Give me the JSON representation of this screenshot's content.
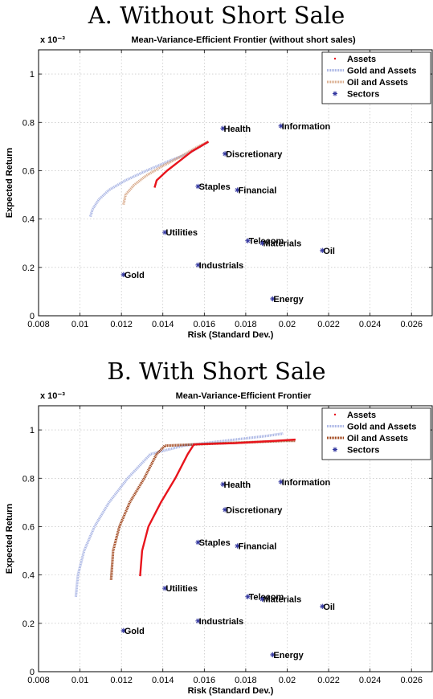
{
  "headings": [
    "A. Without Short Sale",
    "B. With Short Sale"
  ],
  "chart_data": [
    {
      "type": "scatter",
      "title": "Mean-Variance-Efficient Frontier (without short sales)",
      "xlabel": "Risk (Standard Dev.)",
      "ylabel": "Expected Return",
      "y_exponent_label": "x 10⁻³",
      "xlim": [
        0.008,
        0.027
      ],
      "ylim": [
        0,
        1.1
      ],
      "x_ticks": [
        0.008,
        0.01,
        0.012,
        0.014,
        0.016,
        0.018,
        0.02,
        0.022,
        0.024,
        0.026
      ],
      "y_ticks": [
        0,
        0.2,
        0.4,
        0.6,
        0.8,
        1
      ],
      "grid": true,
      "legend_position": "top-right",
      "legend": [
        "Assets",
        "Gold and Assets",
        "Oil and Assets",
        "Sectors"
      ],
      "colors": {
        "assets": "#e8141c",
        "gold": "#a8b4e4",
        "oil": "#d8a888",
        "sectors": "#3438a0"
      },
      "frontiers": [
        {
          "name": "Assets",
          "points": [
            [
              0.0136,
              0.53
            ],
            [
              0.0137,
              0.56
            ],
            [
              0.0142,
              0.6
            ],
            [
              0.0148,
              0.64
            ],
            [
              0.0154,
              0.68
            ],
            [
              0.0158,
              0.7
            ],
            [
              0.0162,
              0.72
            ]
          ]
        },
        {
          "name": "Gold and Assets",
          "points": [
            [
              0.0105,
              0.41
            ],
            [
              0.0106,
              0.44
            ],
            [
              0.0109,
              0.48
            ],
            [
              0.0114,
              0.52
            ],
            [
              0.0122,
              0.56
            ],
            [
              0.0132,
              0.6
            ],
            [
              0.0143,
              0.64
            ],
            [
              0.0152,
              0.67
            ],
            [
              0.0158,
              0.7
            ],
            [
              0.0162,
              0.72
            ]
          ]
        },
        {
          "name": "Oil and Assets",
          "points": [
            [
              0.0121,
              0.46
            ],
            [
              0.0122,
              0.5
            ],
            [
              0.0126,
              0.54
            ],
            [
              0.0132,
              0.58
            ],
            [
              0.014,
              0.62
            ],
            [
              0.0149,
              0.66
            ],
            [
              0.0157,
              0.7
            ],
            [
              0.0162,
              0.72
            ]
          ]
        }
      ],
      "sectors": [
        {
          "name": "Health",
          "x": 0.0169,
          "y": 0.775
        },
        {
          "name": "Information",
          "x": 0.0197,
          "y": 0.785
        },
        {
          "name": "Discretionary",
          "x": 0.017,
          "y": 0.67
        },
        {
          "name": "Staples",
          "x": 0.0157,
          "y": 0.535
        },
        {
          "name": "Financial",
          "x": 0.0176,
          "y": 0.52
        },
        {
          "name": "Utilities",
          "x": 0.0141,
          "y": 0.345
        },
        {
          "name": "Telecom",
          "x": 0.0181,
          "y": 0.31
        },
        {
          "name": "Materials",
          "x": 0.0188,
          "y": 0.3
        },
        {
          "name": "Oil",
          "x": 0.0217,
          "y": 0.27
        },
        {
          "name": "Industrials",
          "x": 0.0157,
          "y": 0.21
        },
        {
          "name": "Gold",
          "x": 0.0121,
          "y": 0.17
        },
        {
          "name": "Energy",
          "x": 0.0193,
          "y": 0.07
        }
      ]
    },
    {
      "type": "scatter",
      "title": "Mean-Variance-Efficient Frontier",
      "xlabel": "Risk (Standard Dev.)",
      "ylabel": "Expected Return",
      "y_exponent_label": "x 10⁻³",
      "xlim": [
        0.008,
        0.027
      ],
      "ylim": [
        0,
        1.1
      ],
      "x_ticks": [
        0.008,
        0.01,
        0.012,
        0.014,
        0.016,
        0.018,
        0.02,
        0.022,
        0.024,
        0.026
      ],
      "y_ticks": [
        0,
        0.2,
        0.4,
        0.6,
        0.8,
        1
      ],
      "grid": true,
      "legend_position": "top-right",
      "legend": [
        "Assets",
        "Gold and Assets",
        "Oil and Assets",
        "Sectors"
      ],
      "colors": {
        "assets": "#e8141c",
        "gold": "#a8b4e4",
        "oil": "#9c3c10",
        "sectors": "#3438a0"
      },
      "frontiers": [
        {
          "name": "Assets",
          "points": [
            [
              0.0129,
              0.395
            ],
            [
              0.013,
              0.5
            ],
            [
              0.0133,
              0.6
            ],
            [
              0.0139,
              0.7
            ],
            [
              0.0146,
              0.8
            ],
            [
              0.0152,
              0.9
            ],
            [
              0.0155,
              0.94
            ],
            [
              0.0175,
              0.945
            ],
            [
              0.0195,
              0.955
            ],
            [
              0.0204,
              0.96
            ]
          ]
        },
        {
          "name": "Gold and Assets",
          "points": [
            [
              0.0098,
              0.31
            ],
            [
              0.0099,
              0.4
            ],
            [
              0.0102,
              0.5
            ],
            [
              0.0107,
              0.6
            ],
            [
              0.0114,
              0.7
            ],
            [
              0.0123,
              0.8
            ],
            [
              0.0134,
              0.9
            ],
            [
              0.015,
              0.935
            ],
            [
              0.017,
              0.955
            ],
            [
              0.019,
              0.975
            ],
            [
              0.0198,
              0.985
            ]
          ]
        },
        {
          "name": "Oil and Assets",
          "points": [
            [
              0.0115,
              0.38
            ],
            [
              0.0116,
              0.5
            ],
            [
              0.0119,
              0.6
            ],
            [
              0.0124,
              0.7
            ],
            [
              0.0131,
              0.8
            ],
            [
              0.0137,
              0.9
            ],
            [
              0.0141,
              0.935
            ],
            [
              0.017,
              0.945
            ],
            [
              0.02,
              0.955
            ],
            [
              0.0204,
              0.955
            ]
          ]
        }
      ],
      "sectors": [
        {
          "name": "Health",
          "x": 0.0169,
          "y": 0.775
        },
        {
          "name": "Information",
          "x": 0.0197,
          "y": 0.785
        },
        {
          "name": "Discretionary",
          "x": 0.017,
          "y": 0.67
        },
        {
          "name": "Staples",
          "x": 0.0157,
          "y": 0.535
        },
        {
          "name": "Financial",
          "x": 0.0176,
          "y": 0.52
        },
        {
          "name": "Utilities",
          "x": 0.0141,
          "y": 0.345
        },
        {
          "name": "Telecom",
          "x": 0.0181,
          "y": 0.31
        },
        {
          "name": "Materials",
          "x": 0.0188,
          "y": 0.3
        },
        {
          "name": "Oil",
          "x": 0.0217,
          "y": 0.27
        },
        {
          "name": "Industrials",
          "x": 0.0157,
          "y": 0.21
        },
        {
          "name": "Gold",
          "x": 0.0121,
          "y": 0.17
        },
        {
          "name": "Energy",
          "x": 0.0193,
          "y": 0.07
        }
      ]
    }
  ]
}
